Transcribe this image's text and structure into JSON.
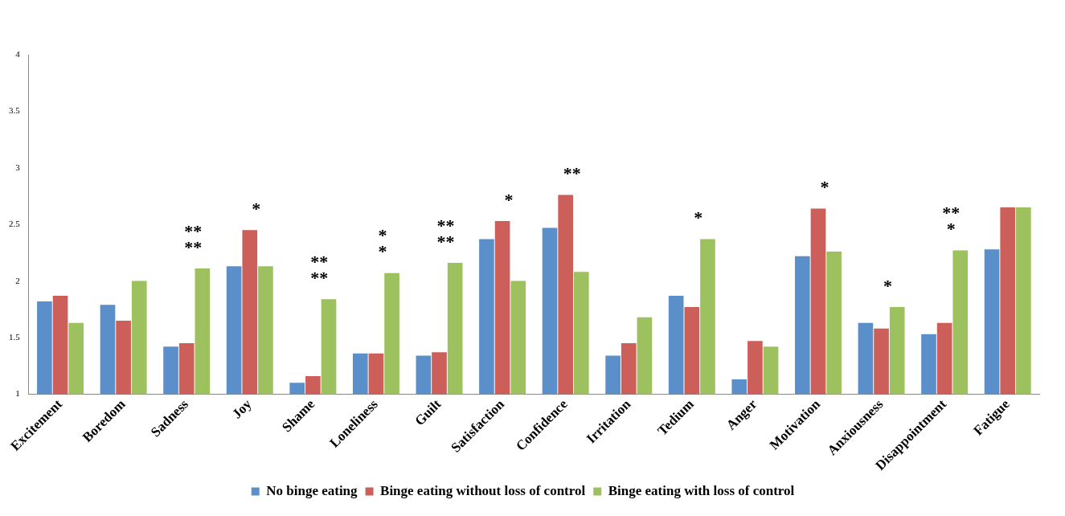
{
  "chart_data": {
    "type": "bar",
    "categories": [
      "Excitement",
      "Boredom",
      "Sadness",
      "Joy",
      "Shame",
      "Loneliness",
      "Guilt",
      "Satisfaction",
      "Confidence",
      "Irritation",
      "Tedium",
      "Anger",
      "Motivation",
      "Anxiousness",
      "Disappointment",
      "Fatigue"
    ],
    "series": [
      {
        "name": "No binge eating",
        "color": "#5b8fc9",
        "values": [
          1.82,
          1.79,
          1.42,
          2.13,
          1.1,
          1.36,
          1.34,
          2.37,
          2.47,
          1.34,
          1.87,
          1.13,
          2.22,
          1.63,
          1.53,
          2.28
        ]
      },
      {
        "name": "Binge eating without loss of control",
        "color": "#cd5f5a",
        "values": [
          1.87,
          1.65,
          1.45,
          2.45,
          1.16,
          1.36,
          1.37,
          2.53,
          2.76,
          1.45,
          1.77,
          1.47,
          2.64,
          1.58,
          1.63,
          2.65
        ]
      },
      {
        "name": "Binge eating with loss of control",
        "color": "#9dc15f",
        "values": [
          1.63,
          2.0,
          2.11,
          2.13,
          1.84,
          2.07,
          2.16,
          2.0,
          2.08,
          1.68,
          2.37,
          1.42,
          2.26,
          1.77,
          2.27,
          2.65
        ]
      }
    ],
    "ylim": [
      1,
      4
    ],
    "yticks": [
      1,
      1.5,
      2,
      2.5,
      3,
      3.5,
      4
    ],
    "grid": false,
    "legend": "bottom",
    "annotations": [
      "**",
      "**",
      "*",
      "**",
      "**",
      "*",
      "*",
      "**",
      "**",
      "*",
      "**",
      "*",
      "*",
      "*",
      "**",
      "*"
    ]
  }
}
